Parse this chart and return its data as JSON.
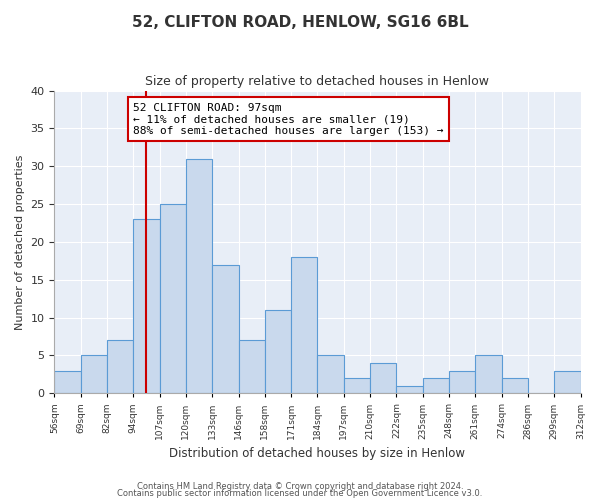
{
  "title": "52, CLIFTON ROAD, HENLOW, SG16 6BL",
  "subtitle": "Size of property relative to detached houses in Henlow",
  "xlabel": "Distribution of detached houses by size in Henlow",
  "ylabel": "Number of detached properties",
  "bin_labels": [
    "56sqm",
    "69sqm",
    "82sqm",
    "94sqm",
    "107sqm",
    "120sqm",
    "133sqm",
    "146sqm",
    "158sqm",
    "171sqm",
    "184sqm",
    "197sqm",
    "210sqm",
    "222sqm",
    "235sqm",
    "248sqm",
    "261sqm",
    "274sqm",
    "286sqm",
    "299sqm",
    "312sqm"
  ],
  "counts": [
    3,
    5,
    7,
    23,
    25,
    31,
    17,
    7,
    11,
    18,
    5,
    2,
    4,
    1,
    2,
    3,
    5,
    2,
    0,
    3
  ],
  "bar_color": "#c9d9ed",
  "bar_edge_color": "#5b9bd5",
  "vline_index": 3.5,
  "annotation_title": "52 CLIFTON ROAD: 97sqm",
  "annotation_line1": "← 11% of detached houses are smaller (19)",
  "annotation_line2": "88% of semi-detached houses are larger (153) →",
  "vline_color": "#cc0000",
  "annotation_box_edge_color": "#cc0000",
  "ylim": [
    0,
    40
  ],
  "yticks": [
    0,
    5,
    10,
    15,
    20,
    25,
    30,
    35,
    40
  ],
  "footnote1": "Contains HM Land Registry data © Crown copyright and database right 2024.",
  "footnote2": "Contains public sector information licensed under the Open Government Licence v3.0.",
  "background_color": "#ffffff",
  "plot_bg_color": "#e8eef7",
  "grid_color": "#ffffff"
}
